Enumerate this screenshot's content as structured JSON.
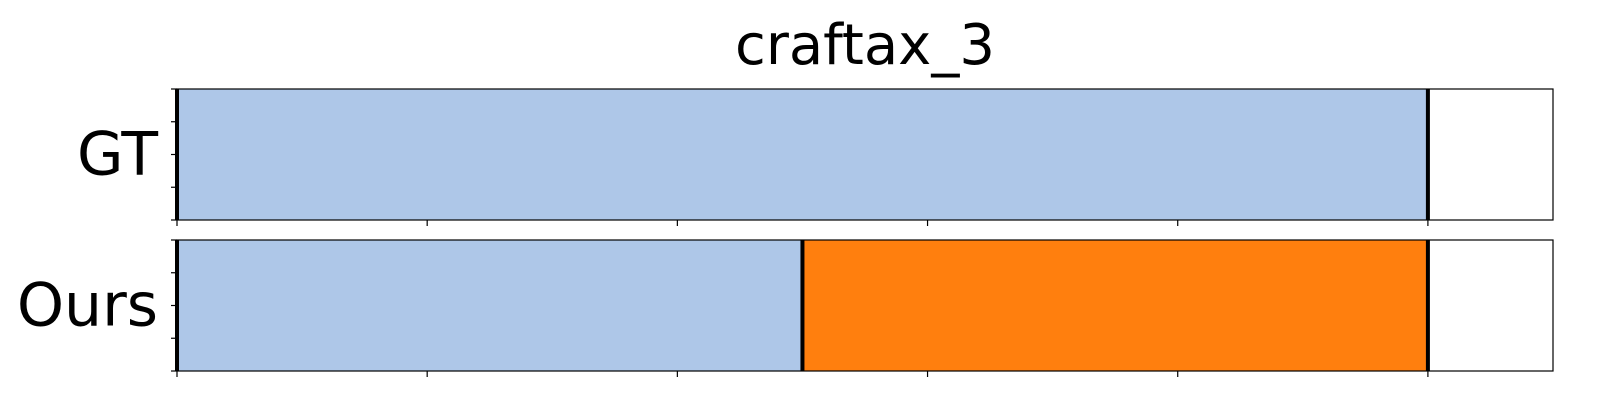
{
  "chart_data": {
    "type": "bar",
    "subtype": "segmentation-timeline",
    "title": "craftax_3",
    "xlim": [
      0,
      5.5
    ],
    "x_ticks": [
      0,
      1,
      2,
      3,
      4,
      5
    ],
    "x_tick_labels": [
      "",
      "",
      "",
      "",
      "",
      ""
    ],
    "y_tick_count": 5,
    "rows": [
      {
        "label": "GT",
        "segments": [
          {
            "start": 0,
            "end": 5,
            "color": "#aec7e8"
          }
        ],
        "boundaries": [
          0,
          5
        ]
      },
      {
        "label": "Ours",
        "segments": [
          {
            "start": 0,
            "end": 2.5,
            "color": "#aec7e8"
          },
          {
            "start": 2.5,
            "end": 5,
            "color": "#ff7f0e"
          }
        ],
        "boundaries": [
          0,
          2.5,
          5
        ]
      }
    ]
  }
}
